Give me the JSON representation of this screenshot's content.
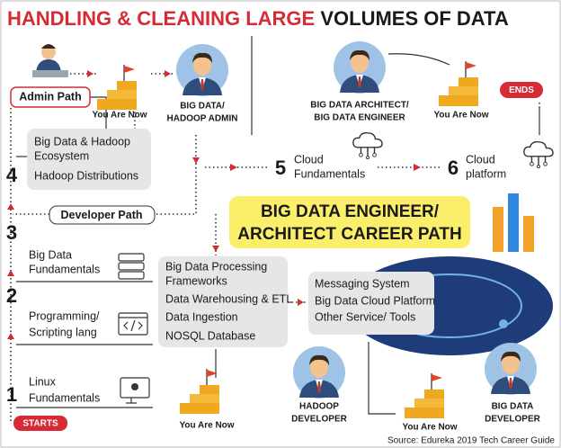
{
  "title": {
    "highlight": "HANDLING & CLEANING LARGE",
    "rest": "VOLUMES OF DATA"
  },
  "admin_path": {
    "label": "Admin Path",
    "you_are_now": "You Are Now",
    "role": [
      "BIG DATA/",
      "HADOOP ADMIN"
    ],
    "skills": [
      [
        "Big Data & Hadoop",
        "Ecosystem"
      ],
      [
        "Hadoop Distributions"
      ]
    ]
  },
  "architect": {
    "role": [
      "BIG DATA ARCHITECT/",
      "BIG DATA ENGINEER"
    ],
    "you_are_now": "You Are Now",
    "ends": "ENDS"
  },
  "steps": [
    {
      "number": "1",
      "label": [
        "Linux",
        "Fundamentals"
      ]
    },
    {
      "number": "2",
      "label": [
        "Programming/",
        "Scripting lang"
      ]
    },
    {
      "number": "3",
      "label": [
        "Big Data",
        "Fundamentals"
      ]
    },
    {
      "number": "4"
    },
    {
      "number": "5",
      "label": [
        "Cloud",
        "Fundamentals"
      ]
    },
    {
      "number": "6",
      "label": [
        "Cloud",
        "platform"
      ]
    }
  ],
  "developer_path": "Developer Path",
  "banner": [
    "BIG DATA ENGINEER/",
    "ARCHITECT CAREER PATH"
  ],
  "dev_skills": [
    [
      "Big Data Processing",
      "Frameworks"
    ],
    [
      "Data Warehousing & ETL"
    ],
    [
      "Data Ingestion"
    ],
    [
      "NOSQL Database"
    ]
  ],
  "cloud_skills": [
    "Messaging System",
    "Big Data Cloud Platform",
    "Other Service/ Tools"
  ],
  "hadoop_developer": {
    "you_are_now": "You Are Now",
    "role": [
      "HADOOP",
      "DEVELOPER"
    ]
  },
  "big_data_developer": {
    "you_are_now": "You Are Now",
    "role": [
      "BIG DATA",
      "DEVELOPER"
    ]
  },
  "starts": "STARTS",
  "source": "Source: Edureka 2019 Tech Career Guide"
}
